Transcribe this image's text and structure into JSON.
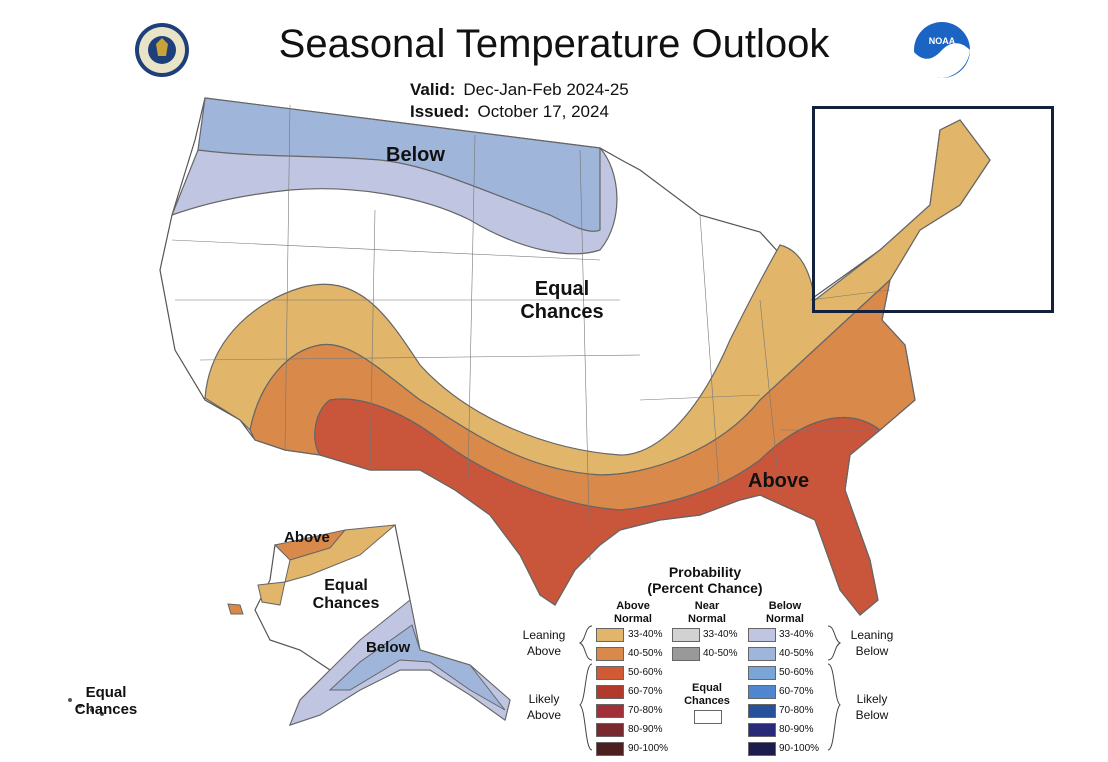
{
  "header": {
    "title": "Seasonal Temperature Outlook",
    "valid_label": "Valid:",
    "valid_value": "Dec-Jan-Feb 2024-25",
    "issued_label": "Issued:",
    "issued_value": "October 17, 2024"
  },
  "logos": {
    "left": "doc-seal-icon",
    "right": "noaa-logo-icon",
    "noaa_text": "NOAA"
  },
  "map_labels": {
    "below_north": "Below",
    "equal_center_1": "Equal",
    "equal_center_2": "Chances",
    "above_south": "Above",
    "ak_above": "Above",
    "ak_equal_1": "Equal",
    "ak_equal_2": "Chances",
    "ak_below": "Below",
    "hi_equal_1": "Equal",
    "hi_equal_2": "Chances"
  },
  "legend": {
    "title_1": "Probability",
    "title_2": "(Percent Chance)",
    "above_head": [
      "Above",
      "Normal"
    ],
    "near_head": [
      "Near",
      "Normal"
    ],
    "below_head": [
      "Below",
      "Normal"
    ],
    "leaning_above": [
      "Leaning",
      "Above"
    ],
    "likely_above": [
      "Likely",
      "Above"
    ],
    "leaning_below": [
      "Leaning",
      "Below"
    ],
    "likely_below": [
      "Likely",
      "Below"
    ],
    "equal_chances": [
      "Equal",
      "Chances"
    ],
    "above": [
      {
        "range": "33-40%",
        "color": "#e1b56a"
      },
      {
        "range": "40-50%",
        "color": "#d9894a"
      },
      {
        "range": "50-60%",
        "color": "#cf5a34"
      },
      {
        "range": "60-70%",
        "color": "#b23a2c"
      },
      {
        "range": "70-80%",
        "color": "#a2303b"
      },
      {
        "range": "80-90%",
        "color": "#7a2a2e"
      },
      {
        "range": "90-100%",
        "color": "#4d1f1f"
      }
    ],
    "near": [
      {
        "range": "33-40%",
        "color": "#d2d2d2"
      },
      {
        "range": "40-50%",
        "color": "#999999"
      }
    ],
    "below": [
      {
        "range": "33-40%",
        "color": "#c0c5e2"
      },
      {
        "range": "40-50%",
        "color": "#9fb5da"
      },
      {
        "range": "50-60%",
        "color": "#7aa5d8"
      },
      {
        "range": "60-70%",
        "color": "#4f86cf"
      },
      {
        "range": "70-80%",
        "color": "#284f9a"
      },
      {
        "range": "80-90%",
        "color": "#2a2a7a"
      },
      {
        "range": "90-100%",
        "color": "#1d1d4d"
      }
    ]
  }
}
